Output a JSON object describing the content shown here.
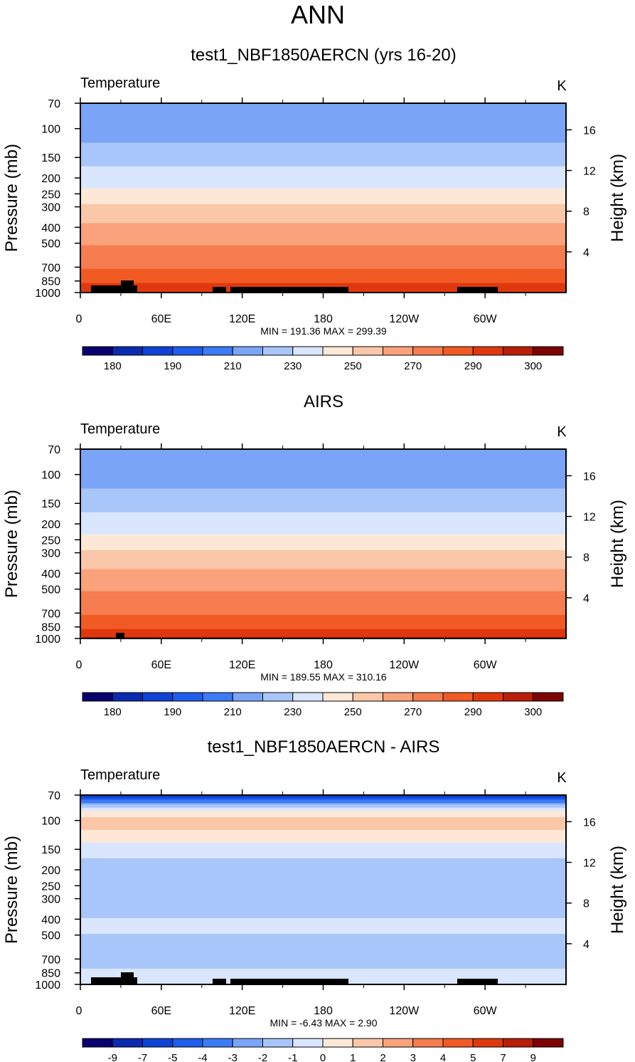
{
  "figure": {
    "title": "ANN",
    "vertical_ticks": {
      "pressure": [
        "70",
        "100",
        "150",
        "200",
        "250",
        "300",
        "400",
        "500",
        "700",
        "850",
        "1000"
      ],
      "height": [
        "16",
        "12",
        "8",
        "4"
      ]
    },
    "longitude_ticks": [
      "0",
      "60E",
      "120E",
      "180",
      "120W",
      "60W"
    ]
  },
  "colors": {
    "abs_palette": [
      "#08006e",
      "#0a2bb0",
      "#0f43d6",
      "#1f5ded",
      "#3d7af5",
      "#7aa5f7",
      "#a9c6fa",
      "#d9e6fd",
      "#fde8d8",
      "#fbc7a9",
      "#f9a27c",
      "#f67d4f",
      "#f25a24",
      "#e0380e",
      "#b81e08",
      "#7c0404"
    ],
    "diff_palette": [
      "#08006e",
      "#0a2bb0",
      "#0f43d6",
      "#1f5ded",
      "#3d7af5",
      "#7aa5f7",
      "#a9c6fa",
      "#d9e6fd",
      "#fde8d8",
      "#fbc7a9",
      "#f9a27c",
      "#f67d4f",
      "#f25a24",
      "#e0380e",
      "#b81e08",
      "#7c0404"
    ],
    "topography": "#000000"
  },
  "chart_data": [
    {
      "type": "heatmap",
      "title": "test1_NBF1850AERCN (yrs 16-20)",
      "variable": "Temperature",
      "units": "K",
      "ylabel": "Pressure (mb)",
      "y2label": "Height (km)",
      "stats": "MIN = 191.36  MAX = 299.39",
      "colorbar_labels": [
        "180",
        "190",
        "210",
        "230",
        "250",
        "270",
        "290",
        "300"
      ],
      "levels": [
        175,
        180,
        185,
        190,
        200,
        210,
        220,
        230,
        240,
        250,
        260,
        270,
        280,
        290,
        295,
        300
      ],
      "profile": [
        [
          70,
          205
        ],
        [
          100,
          205
        ],
        [
          130,
          212
        ],
        [
          170,
          220
        ],
        [
          200,
          225
        ],
        [
          250,
          233
        ],
        [
          290,
          240
        ],
        [
          330,
          245
        ],
        [
          380,
          250
        ],
        [
          440,
          255
        ],
        [
          520,
          260
        ],
        [
          620,
          265
        ],
        [
          720,
          270
        ],
        [
          800,
          275
        ],
        [
          870,
          280
        ],
        [
          930,
          285
        ],
        [
          1000,
          290
        ]
      ]
    },
    {
      "type": "heatmap",
      "title": "AIRS",
      "variable": "Temperature",
      "units": "K",
      "ylabel": "Pressure (mb)",
      "y2label": "Height (km)",
      "stats": "MIN = 189.55  MAX = 310.16",
      "colorbar_labels": [
        "180",
        "190",
        "210",
        "230",
        "250",
        "270",
        "290",
        "300"
      ],
      "levels": [
        175,
        180,
        185,
        190,
        200,
        210,
        220,
        230,
        240,
        250,
        260,
        270,
        280,
        290,
        295,
        300
      ],
      "profile": [
        [
          70,
          205
        ],
        [
          100,
          205
        ],
        [
          130,
          212
        ],
        [
          170,
          220
        ],
        [
          200,
          225
        ],
        [
          250,
          233
        ],
        [
          290,
          240
        ],
        [
          330,
          245
        ],
        [
          380,
          250
        ],
        [
          440,
          255
        ],
        [
          520,
          260
        ],
        [
          620,
          265
        ],
        [
          720,
          270
        ],
        [
          800,
          275
        ],
        [
          870,
          280
        ],
        [
          930,
          285
        ],
        [
          1000,
          292
        ]
      ]
    },
    {
      "type": "heatmap",
      "title": "test1_NBF1850AERCN - AIRS",
      "variable": "Temperature",
      "units": "K",
      "ylabel": "Pressure (mb)",
      "y2label": "Height (km)",
      "stats": "MIN =  -6.43  MAX =   2.90",
      "colorbar_labels": [
        "-9",
        "-7",
        "-5",
        "-4",
        "-3",
        "-2",
        "-1",
        "0",
        "1",
        "2",
        "3",
        "4",
        "5",
        "7",
        "9"
      ],
      "levels": [
        -9,
        -7,
        -5,
        -4,
        -3,
        -2,
        -1,
        0,
        1,
        2,
        3,
        4,
        5,
        7,
        9
      ],
      "profile": [
        [
          70,
          -6
        ],
        [
          78,
          -3
        ],
        [
          85,
          -0.5
        ],
        [
          95,
          1
        ],
        [
          110,
          1.2
        ],
        [
          125,
          0.5
        ],
        [
          145,
          -0.5
        ],
        [
          180,
          -1.2
        ],
        [
          300,
          -1.3
        ],
        [
          450,
          -0.8
        ],
        [
          550,
          -1.3
        ],
        [
          650,
          -1.4
        ],
        [
          750,
          -1.2
        ],
        [
          850,
          -0.8
        ],
        [
          950,
          -0.4
        ],
        [
          1000,
          -0.3
        ]
      ]
    }
  ]
}
